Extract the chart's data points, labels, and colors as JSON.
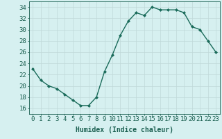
{
  "x": [
    0,
    1,
    2,
    3,
    4,
    5,
    6,
    7,
    8,
    9,
    10,
    11,
    12,
    13,
    14,
    15,
    16,
    17,
    18,
    19,
    20,
    21,
    22,
    23
  ],
  "y": [
    23,
    21,
    20,
    19.5,
    18.5,
    17.5,
    16.5,
    16.5,
    18,
    22.5,
    25.5,
    29,
    31.5,
    33,
    32.5,
    34,
    33.5,
    33.5,
    33.5,
    33,
    30.5,
    30,
    28,
    26
  ],
  "line_color": "#1a6b5a",
  "marker": "D",
  "marker_size": 2,
  "bg_color": "#d6f0f0",
  "grid_color": "#c0d8d8",
  "xlabel": "Humidex (Indice chaleur)",
  "xlim": [
    -0.5,
    23.5
  ],
  "ylim": [
    15,
    35
  ],
  "yticks": [
    16,
    18,
    20,
    22,
    24,
    26,
    28,
    30,
    32,
    34
  ],
  "xticks": [
    0,
    1,
    2,
    3,
    4,
    5,
    6,
    7,
    8,
    9,
    10,
    11,
    12,
    13,
    14,
    15,
    16,
    17,
    18,
    19,
    20,
    21,
    22,
    23
  ],
  "xlabel_fontsize": 7,
  "tick_fontsize": 6.5,
  "tick_color": "#1a5f50",
  "axis_color": "#1a5f50",
  "linewidth": 1.0
}
